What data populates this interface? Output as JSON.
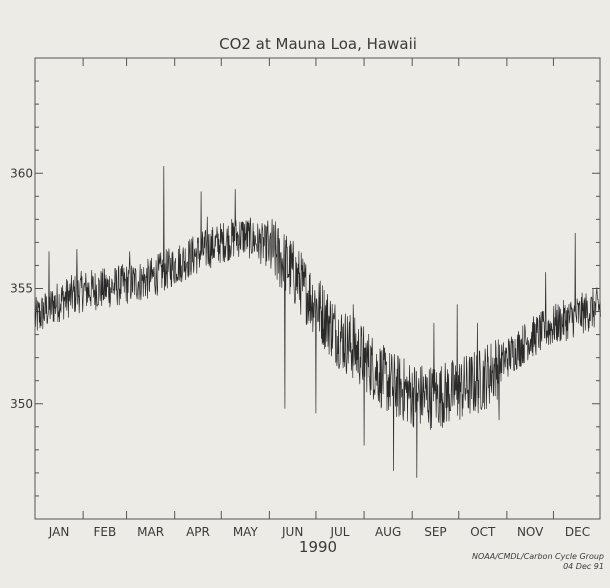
{
  "chart_data": {
    "type": "line",
    "title": "CO2 at Mauna Loa, Hawaii",
    "xlabel": "1990",
    "ylabel": "",
    "credit_line1": "NOAA/CMDL/Carbon Cycle Group",
    "credit_line2": "04 Dec 91",
    "ylim": [
      345.0,
      365.0
    ],
    "y_ticks": [
      350,
      355,
      360
    ],
    "x_categories": [
      "JAN",
      "FEB",
      "MAR",
      "APR",
      "MAY",
      "JUN",
      "JUL",
      "AUG",
      "SEP",
      "OCT",
      "NOV",
      "DEC"
    ],
    "grid": false,
    "legend": "none",
    "line_color": "#2a2a2a",
    "series": [
      {
        "x": [
          1,
          15,
          32,
          46,
          60,
          74,
          91,
          105,
          121,
          135,
          152,
          166,
          182,
          196,
          213,
          227,
          244,
          258,
          274,
          288,
          305,
          319,
          335,
          349,
          365
        ],
        "values": [
          353.7,
          354.4,
          354.9,
          355.0,
          355.2,
          355.4,
          356.0,
          356.5,
          357.0,
          357.3,
          356.8,
          355.8,
          354.3,
          353.0,
          352.0,
          351.0,
          350.4,
          350.3,
          350.6,
          351.0,
          352.0,
          352.8,
          353.4,
          353.8,
          354.2
        ],
        "spikes": [
          {
            "x": 10,
            "value": 356.6
          },
          {
            "x": 28,
            "value": 356.7
          },
          {
            "x": 62,
            "value": 356.6
          },
          {
            "x": 84,
            "value": 360.3
          },
          {
            "x": 95,
            "value": 355.5
          },
          {
            "x": 108,
            "value": 359.2
          },
          {
            "x": 112,
            "value": 358.1
          },
          {
            "x": 130,
            "value": 359.3
          },
          {
            "x": 152,
            "value": 356.9
          },
          {
            "x": 162,
            "value": 349.8
          },
          {
            "x": 174,
            "value": 355.1
          },
          {
            "x": 182,
            "value": 349.6
          },
          {
            "x": 206,
            "value": 354.3
          },
          {
            "x": 213,
            "value": 348.2
          },
          {
            "x": 232,
            "value": 347.1
          },
          {
            "x": 247,
            "value": 346.8
          },
          {
            "x": 258,
            "value": 353.5
          },
          {
            "x": 273,
            "value": 354.3
          },
          {
            "x": 286,
            "value": 353.5
          },
          {
            "x": 300,
            "value": 349.3
          },
          {
            "x": 330,
            "value": 355.7
          },
          {
            "x": 349,
            "value": 357.4
          }
        ]
      }
    ]
  }
}
